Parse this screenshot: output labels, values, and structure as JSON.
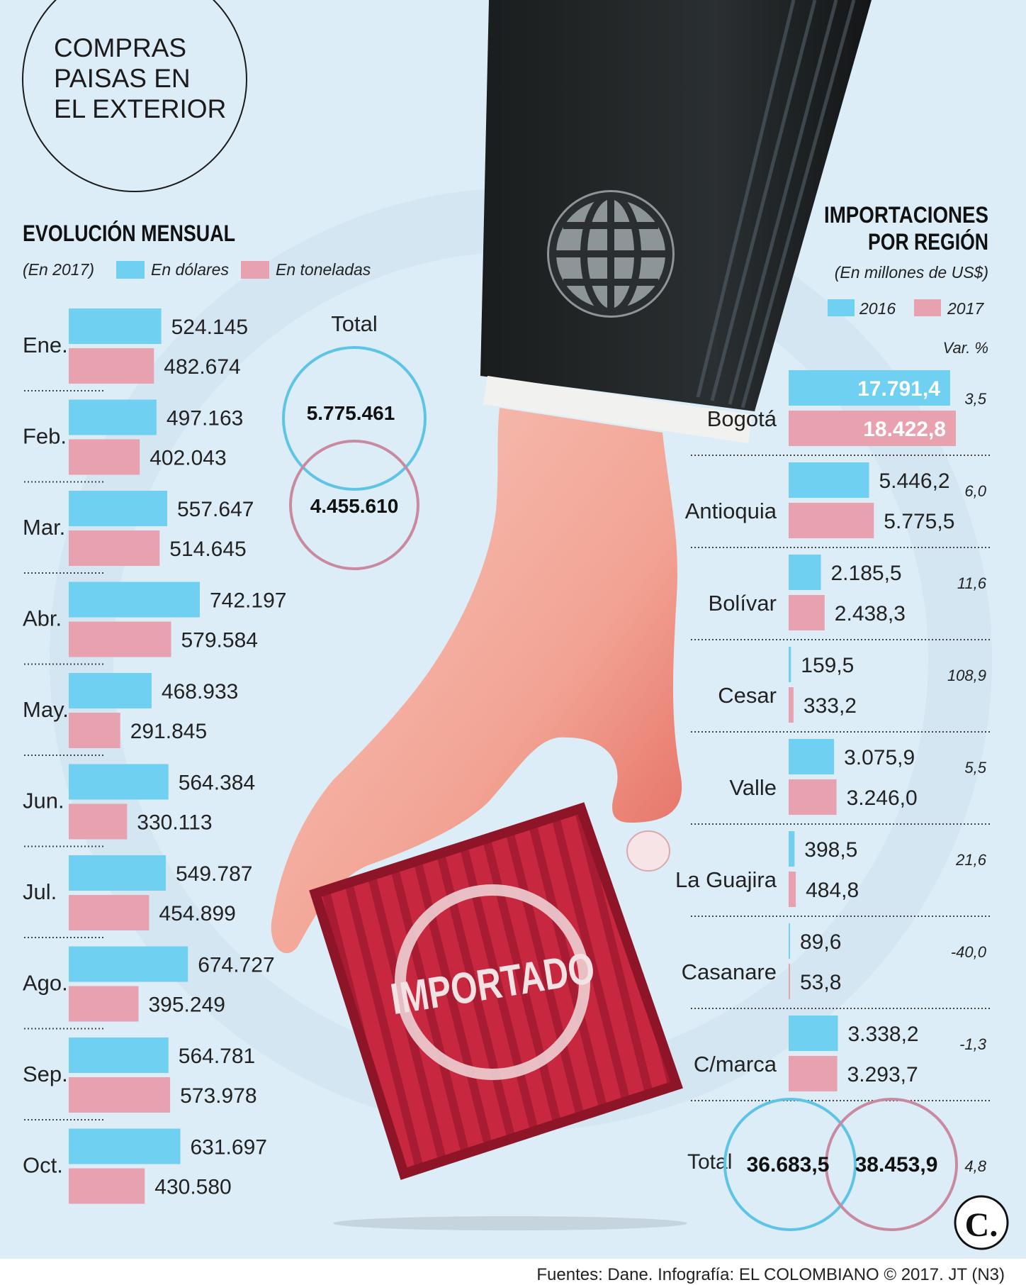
{
  "title": "COMPRAS PAISAS EN EL EXTERIOR",
  "title_lines": [
    "COMPRAS",
    "PAISAS EN",
    "EL EXTERIOR"
  ],
  "monthly": {
    "heading": "EVOLUCIÓN MENSUAL",
    "subtitle": "(En 2017)",
    "legend": [
      "En dólares",
      "En toneladas"
    ],
    "total_label": "Total",
    "total_dollars": "5.775.461",
    "total_tons": "4.455.610"
  },
  "regional": {
    "heading_lines": [
      "IMPORTACIONES",
      "POR REGIÓN"
    ],
    "subtitle": "(En millones de US$)",
    "legend": [
      "2016",
      "2017"
    ],
    "var_label": "Var. %",
    "total_label": "Total",
    "total_2016": "36.683,5",
    "total_2017": "38.453,9",
    "total_var": "4,8"
  },
  "illustration": {
    "stamp": "IMPORTADO",
    "logo": "C."
  },
  "footer": "Fuentes: Dane. Infografía: EL COLOMBIANO © 2017. JT (N3)",
  "colors": {
    "blue": "#6fd0f2",
    "pink": "#e8a1ae",
    "bg": "#dcedf8",
    "circle_blue": "#5ec4e6",
    "circle_pink": "#c98aa0"
  },
  "chart_data": [
    {
      "type": "bar",
      "orientation": "horizontal",
      "title": "EVOLUCIÓN MENSUAL",
      "subtitle": "(En 2017)",
      "categories": [
        "Ene.",
        "Feb.",
        "Mar.",
        "Abr.",
        "May.",
        "Jun.",
        "Jul.",
        "Ago.",
        "Sep.",
        "Oct."
      ],
      "series": [
        {
          "name": "En dólares",
          "color": "#6fd0f2",
          "values": [
            524145,
            497163,
            557647,
            742197,
            468933,
            564384,
            549787,
            674727,
            564781,
            631697
          ],
          "labels": [
            "524.145",
            "497.163",
            "557.647",
            "742.197",
            "468.933",
            "564.384",
            "549.787",
            "674.727",
            "564.781",
            "631.697"
          ]
        },
        {
          "name": "En toneladas",
          "color": "#e8a1ae",
          "values": [
            482674,
            402043,
            514645,
            579584,
            291845,
            330113,
            454899,
            395249,
            573978,
            430580
          ],
          "labels": [
            "482.674",
            "402.043",
            "514.645",
            "579.584",
            "291.845",
            "330.113",
            "454.899",
            "395.249",
            "573.978",
            "430.580"
          ]
        }
      ],
      "legend": "top"
    },
    {
      "type": "bar",
      "orientation": "horizontal",
      "title": "IMPORTACIONES POR REGIÓN",
      "subtitle": "(En millones de US$)",
      "categories": [
        "Bogotá",
        "Antioquia",
        "Bolívar",
        "Cesar",
        "Valle",
        "La Guajira",
        "Casanare",
        "C/marca"
      ],
      "series": [
        {
          "name": "2016",
          "color": "#6fd0f2",
          "values": [
            17791.4,
            5446.2,
            2185.5,
            159.5,
            3075.9,
            398.5,
            89.6,
            3338.2
          ],
          "labels": [
            "17.791,4",
            "5.446,2",
            "2.185,5",
            "159,5",
            "3.075,9",
            "398,5",
            "89,6",
            "3.338,2"
          ]
        },
        {
          "name": "2017",
          "color": "#e8a1ae",
          "values": [
            18422.8,
            5775.5,
            2438.3,
            333.2,
            3246.0,
            484.8,
            53.8,
            3293.7
          ],
          "labels": [
            "18.422,8",
            "5.775,5",
            "2.438,3",
            "333,2",
            "3.246,0",
            "484,8",
            "53,8",
            "3.293,7"
          ]
        }
      ],
      "var_pct": [
        "3,5",
        "6,0",
        "11,6",
        "108,9",
        "5,5",
        "21,6",
        "-40,0",
        "-1,3"
      ],
      "legend": "top-right"
    }
  ]
}
